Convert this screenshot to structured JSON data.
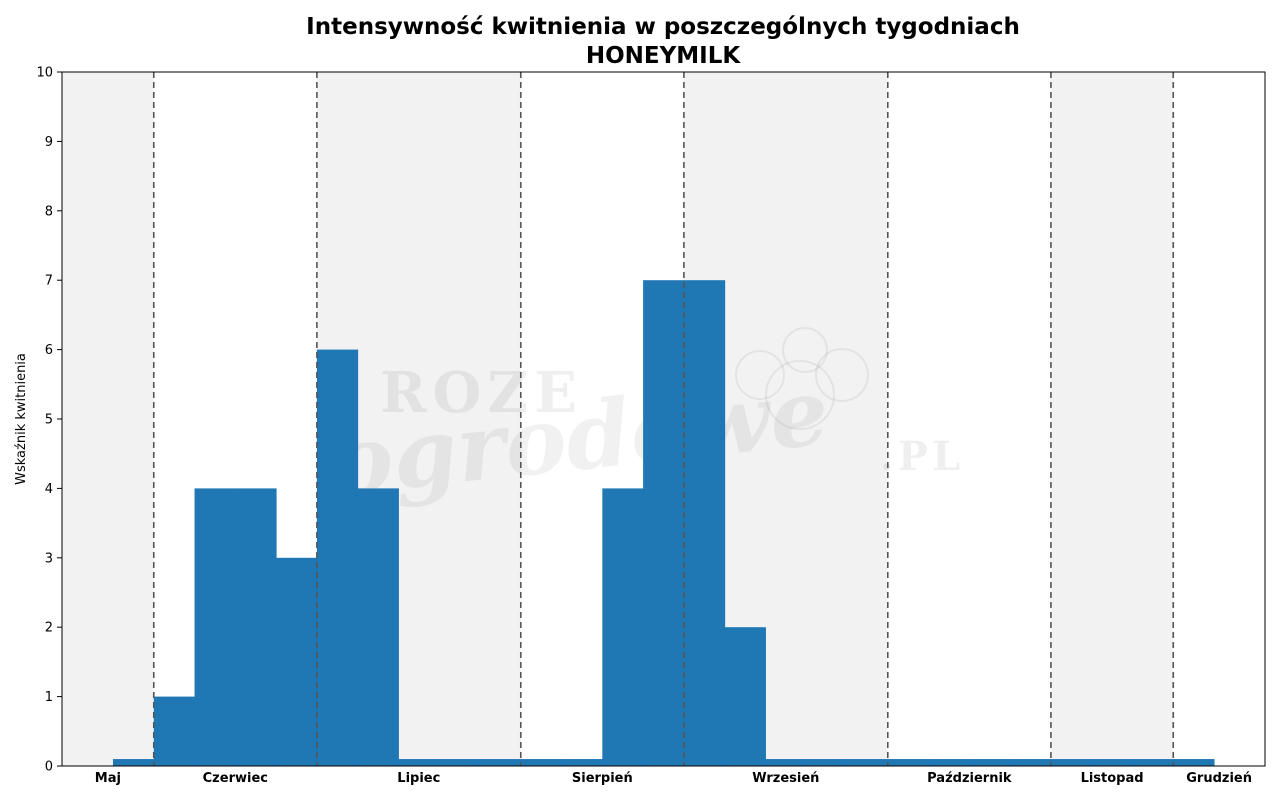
{
  "chart_data": {
    "type": "bar",
    "title": "Intensywność kwitnienia w poszczególnych tygodniach",
    "subtitle": "HONEYMILK",
    "ylabel": "Wskaźnik kwitnienia",
    "xlabel": "",
    "ylim": [
      0,
      10
    ],
    "yticks": [
      "0",
      "1",
      "2",
      "3",
      "4",
      "5",
      "6",
      "7",
      "8",
      "9",
      "10"
    ],
    "grid": false,
    "months": [
      {
        "label": "Maj",
        "weeks": 2.25
      },
      {
        "label": "Czerwiec",
        "weeks": 4
      },
      {
        "label": "Lipiec",
        "weeks": 5
      },
      {
        "label": "Sierpień",
        "weeks": 4
      },
      {
        "label": "Wrzesień",
        "weeks": 5
      },
      {
        "label": "Październik",
        "weeks": 4
      },
      {
        "label": "Listopad",
        "weeks": 3
      },
      {
        "label": "Grudzień",
        "weeks": 2.25
      }
    ],
    "series": [
      {
        "values": [
          0.1,
          1,
          4,
          4,
          3,
          6,
          4,
          0.1,
          0.1,
          0.1,
          0.1,
          0.1,
          4,
          7,
          7,
          2,
          0.1,
          0.1,
          0.1,
          0.1,
          0.1,
          0.1,
          0.1,
          0.1,
          0.1,
          0.1,
          0.1
        ]
      }
    ],
    "bar_start_week": 1.25,
    "colors": {
      "bar": "#1f77b4",
      "band": "#f2f2f2",
      "divider": "#555555"
    },
    "watermark": [
      "ROZE",
      "ogrodowe",
      ".PL"
    ]
  }
}
